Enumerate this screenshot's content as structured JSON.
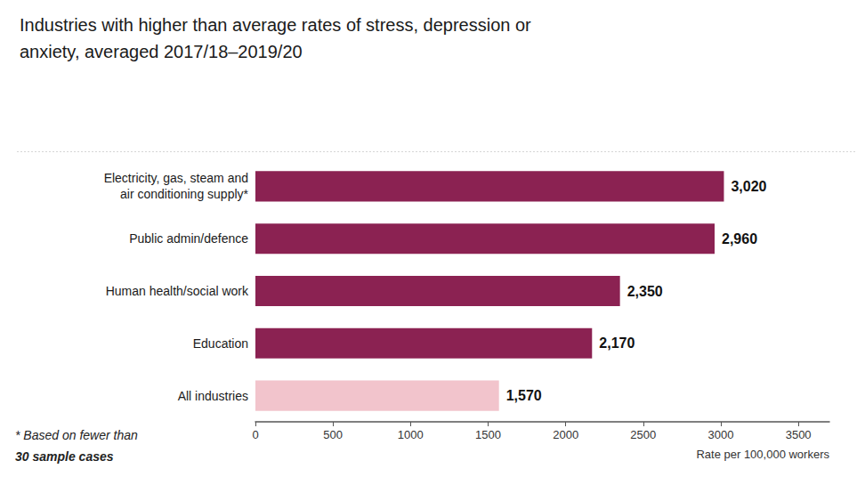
{
  "chart_data": {
    "type": "bar",
    "orientation": "horizontal",
    "title": "Industries with higher than average rates of stress, depression or\nanxiety, averaged 2017/18–2019/20",
    "categories": [
      "Electricity, gas, steam and\nair conditioning supply*",
      "Public admin/defence",
      "Human health/social work",
      "Education",
      "All industries"
    ],
    "values": [
      3020,
      2960,
      2350,
      2170,
      1570
    ],
    "value_labels": [
      "3,020",
      "2,960",
      "2,350",
      "2,170",
      "1,570"
    ],
    "data_labels": true,
    "colors": [
      "#8B2252",
      "#8B2252",
      "#8B2252",
      "#8B2252",
      "#F2C4CC"
    ],
    "xlabel": "Rate per 100,000 workers",
    "xlim": [
      0,
      3700
    ],
    "xticks": [
      0,
      500,
      1000,
      1500,
      2000,
      2500,
      3000,
      3500
    ],
    "grid": false,
    "annotations": [
      "* Based on fewer than",
      "30 sample cases"
    ]
  }
}
